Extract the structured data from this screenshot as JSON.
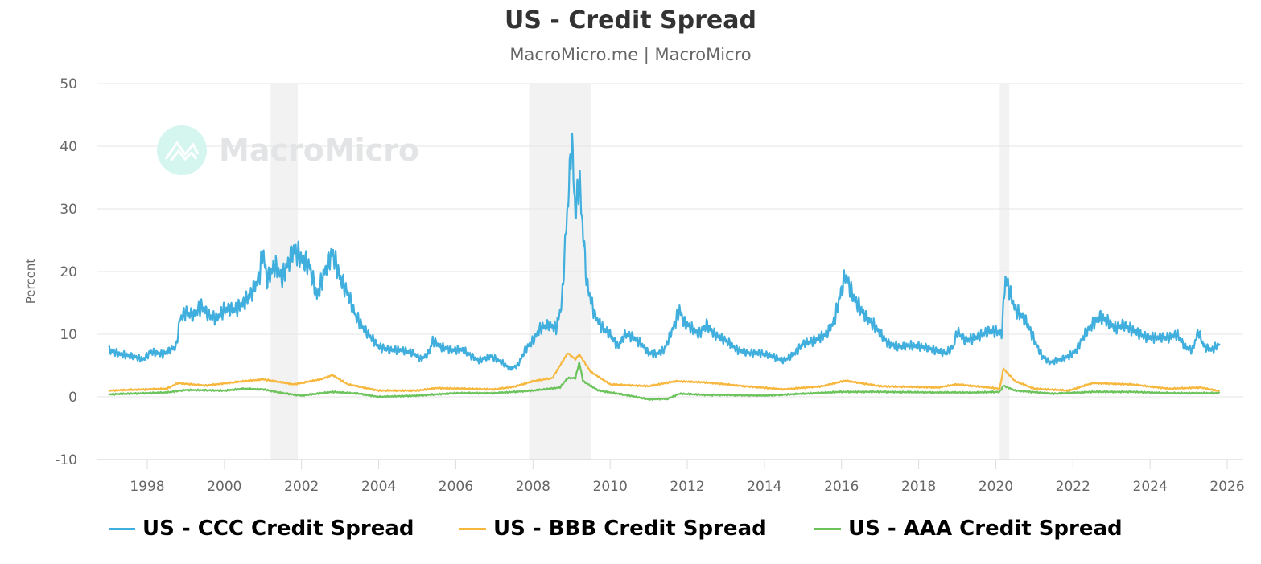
{
  "chart_data": {
    "type": "line",
    "title": "US - Credit Spread",
    "subtitle": "MacroMicro.me | MacroMicro",
    "watermark": "MacroMicro",
    "xlabel": "",
    "ylabel": "Percent",
    "xlim": [
      1997,
      2026.2
    ],
    "ylim": [
      -10,
      50
    ],
    "yticks": [
      50,
      40,
      30,
      20,
      10,
      0,
      -10
    ],
    "xticks": [
      1998,
      2000,
      2002,
      2004,
      2006,
      2008,
      2010,
      2012,
      2014,
      2016,
      2018,
      2020,
      2022,
      2024,
      2026
    ],
    "grid": true,
    "legend_position": "bottom",
    "recession_bands": [
      [
        2001.2,
        2001.9
      ],
      [
        2007.9,
        2009.5
      ],
      [
        2020.1,
        2020.35
      ]
    ],
    "series": [
      {
        "name": "US - CCC Credit Spread",
        "color": "#41afdd",
        "points": [
          [
            1997.0,
            7.5
          ],
          [
            1997.3,
            6.8
          ],
          [
            1997.6,
            6.5
          ],
          [
            1997.9,
            6.0
          ],
          [
            1998.1,
            7.2
          ],
          [
            1998.4,
            6.8
          ],
          [
            1998.6,
            7.5
          ],
          [
            1998.75,
            8
          ],
          [
            1998.85,
            12.5
          ],
          [
            1999.0,
            13.5
          ],
          [
            1999.2,
            13
          ],
          [
            1999.4,
            14.5
          ],
          [
            1999.6,
            13
          ],
          [
            1999.8,
            12.5
          ],
          [
            2000.0,
            14
          ],
          [
            2000.3,
            14
          ],
          [
            2000.5,
            15
          ],
          [
            2000.7,
            16.5
          ],
          [
            2000.9,
            19
          ],
          [
            2001.0,
            23.5
          ],
          [
            2001.1,
            18.5
          ],
          [
            2001.3,
            21
          ],
          [
            2001.5,
            19
          ],
          [
            2001.7,
            22
          ],
          [
            2001.8,
            23.5
          ],
          [
            2002.0,
            22
          ],
          [
            2002.2,
            21
          ],
          [
            2002.4,
            16
          ],
          [
            2002.6,
            20
          ],
          [
            2002.8,
            23
          ],
          [
            2003.0,
            19
          ],
          [
            2003.2,
            16.5
          ],
          [
            2003.4,
            13
          ],
          [
            2003.6,
            11
          ],
          [
            2003.8,
            9.5
          ],
          [
            2004.0,
            8
          ],
          [
            2004.3,
            7.5
          ],
          [
            2004.6,
            7.5
          ],
          [
            2004.9,
            7
          ],
          [
            2005.1,
            6
          ],
          [
            2005.3,
            7
          ],
          [
            2005.4,
            9
          ],
          [
            2005.6,
            8
          ],
          [
            2005.9,
            7.5
          ],
          [
            2006.2,
            7.5
          ],
          [
            2006.4,
            6.5
          ],
          [
            2006.6,
            5.8
          ],
          [
            2006.9,
            6.5
          ],
          [
            2007.2,
            5.5
          ],
          [
            2007.4,
            4.5
          ],
          [
            2007.6,
            5
          ],
          [
            2007.8,
            7.5
          ],
          [
            2008.0,
            9
          ],
          [
            2008.2,
            11
          ],
          [
            2008.4,
            11.5
          ],
          [
            2008.6,
            11
          ],
          [
            2008.75,
            15
          ],
          [
            2008.85,
            26
          ],
          [
            2008.95,
            35
          ],
          [
            2009.0,
            42
          ],
          [
            2009.1,
            29
          ],
          [
            2009.2,
            35
          ],
          [
            2009.3,
            26
          ],
          [
            2009.4,
            18
          ],
          [
            2009.6,
            13
          ],
          [
            2009.8,
            11
          ],
          [
            2010.0,
            10
          ],
          [
            2010.2,
            8
          ],
          [
            2010.4,
            10
          ],
          [
            2010.6,
            9.5
          ],
          [
            2010.8,
            8.5
          ],
          [
            2011.0,
            7
          ],
          [
            2011.2,
            6.8
          ],
          [
            2011.4,
            7.5
          ],
          [
            2011.7,
            12
          ],
          [
            2011.8,
            14
          ],
          [
            2011.9,
            12
          ],
          [
            2012.1,
            11
          ],
          [
            2012.3,
            10
          ],
          [
            2012.5,
            11.5
          ],
          [
            2012.7,
            10
          ],
          [
            2013.0,
            9
          ],
          [
            2013.3,
            7.5
          ],
          [
            2013.6,
            7
          ],
          [
            2013.9,
            7
          ],
          [
            2014.2,
            6.5
          ],
          [
            2014.5,
            5.8
          ],
          [
            2014.8,
            7
          ],
          [
            2015.0,
            8.5
          ],
          [
            2015.3,
            9
          ],
          [
            2015.6,
            10
          ],
          [
            2015.8,
            12
          ],
          [
            2016.0,
            17
          ],
          [
            2016.1,
            19.5
          ],
          [
            2016.3,
            16
          ],
          [
            2016.6,
            13
          ],
          [
            2016.9,
            11
          ],
          [
            2017.2,
            8.5
          ],
          [
            2017.5,
            8
          ],
          [
            2017.8,
            8.2
          ],
          [
            2018.1,
            8
          ],
          [
            2018.4,
            7.5
          ],
          [
            2018.7,
            7
          ],
          [
            2018.9,
            8
          ],
          [
            2019.0,
            10.5
          ],
          [
            2019.2,
            9
          ],
          [
            2019.5,
            9.5
          ],
          [
            2019.8,
            10.5
          ],
          [
            2020.0,
            10.5
          ],
          [
            2020.15,
            10
          ],
          [
            2020.25,
            19
          ],
          [
            2020.35,
            17
          ],
          [
            2020.5,
            14
          ],
          [
            2020.8,
            12
          ],
          [
            2021.0,
            9
          ],
          [
            2021.2,
            6.5
          ],
          [
            2021.4,
            5.5
          ],
          [
            2021.7,
            6
          ],
          [
            2021.9,
            6.5
          ],
          [
            2022.1,
            7.5
          ],
          [
            2022.3,
            10
          ],
          [
            2022.5,
            11.5
          ],
          [
            2022.7,
            12.8
          ],
          [
            2022.9,
            12
          ],
          [
            2023.1,
            11
          ],
          [
            2023.3,
            11.5
          ],
          [
            2023.6,
            10.5
          ],
          [
            2023.9,
            9.5
          ],
          [
            2024.2,
            9.5
          ],
          [
            2024.5,
            9.5
          ],
          [
            2024.7,
            10
          ],
          [
            2024.9,
            8
          ],
          [
            2025.1,
            7.5
          ],
          [
            2025.25,
            10.5
          ],
          [
            2025.4,
            8
          ],
          [
            2025.6,
            7.5
          ],
          [
            2025.8,
            8.5
          ]
        ]
      },
      {
        "name": "US - BBB Credit Spread",
        "color": "#f7b73d",
        "points": [
          [
            1997,
            1.0
          ],
          [
            1998.5,
            1.3
          ],
          [
            1998.8,
            2.2
          ],
          [
            1999.5,
            1.8
          ],
          [
            2000.5,
            2.5
          ],
          [
            2001,
            2.8
          ],
          [
            2001.8,
            2
          ],
          [
            2002.5,
            2.8
          ],
          [
            2002.8,
            3.5
          ],
          [
            2003.2,
            2
          ],
          [
            2004,
            1
          ],
          [
            2005,
            1.0
          ],
          [
            2005.5,
            1.4
          ],
          [
            2007,
            1.2
          ],
          [
            2007.5,
            1.6
          ],
          [
            2008,
            2.5
          ],
          [
            2008.5,
            3
          ],
          [
            2008.9,
            7
          ],
          [
            2009.1,
            6
          ],
          [
            2009.2,
            6.8
          ],
          [
            2009.5,
            4
          ],
          [
            2010,
            2
          ],
          [
            2011,
            1.7
          ],
          [
            2011.7,
            2.5
          ],
          [
            2012.5,
            2.3
          ],
          [
            2013.5,
            1.7
          ],
          [
            2014.5,
            1.2
          ],
          [
            2015.5,
            1.7
          ],
          [
            2016.1,
            2.6
          ],
          [
            2017,
            1.7
          ],
          [
            2018.5,
            1.5
          ],
          [
            2019,
            2
          ],
          [
            2020.1,
            1.3
          ],
          [
            2020.2,
            4.5
          ],
          [
            2020.5,
            2.5
          ],
          [
            2021,
            1.3
          ],
          [
            2021.9,
            1.0
          ],
          [
            2022.5,
            2.2
          ],
          [
            2023.5,
            2
          ],
          [
            2024.5,
            1.3
          ],
          [
            2025.3,
            1.5
          ],
          [
            2025.8,
            0.9
          ]
        ]
      },
      {
        "name": "US - AAA Credit Spread",
        "color": "#6cc35c",
        "points": [
          [
            1997,
            0.4
          ],
          [
            1998.5,
            0.7
          ],
          [
            1999,
            1.1
          ],
          [
            2000,
            1.0
          ],
          [
            2000.5,
            1.3
          ],
          [
            2001,
            1.2
          ],
          [
            2001.5,
            0.6
          ],
          [
            2002,
            0.2
          ],
          [
            2002.8,
            0.8
          ],
          [
            2003.5,
            0.5
          ],
          [
            2004,
            0
          ],
          [
            2005,
            0.2
          ],
          [
            2006,
            0.6
          ],
          [
            2007,
            0.6
          ],
          [
            2008,
            1.0
          ],
          [
            2008.7,
            1.5
          ],
          [
            2008.9,
            3
          ],
          [
            2009.1,
            3
          ],
          [
            2009.2,
            5.5
          ],
          [
            2009.3,
            2.5
          ],
          [
            2009.7,
            1
          ],
          [
            2010.5,
            0.2
          ],
          [
            2011,
            -0.4
          ],
          [
            2011.5,
            -0.3
          ],
          [
            2011.8,
            0.5
          ],
          [
            2012.5,
            0.3
          ],
          [
            2013,
            0.3
          ],
          [
            2014,
            0.2
          ],
          [
            2015,
            0.5
          ],
          [
            2016,
            0.8
          ],
          [
            2017,
            0.8
          ],
          [
            2018.5,
            0.7
          ],
          [
            2019.5,
            0.7
          ],
          [
            2020.1,
            0.8
          ],
          [
            2020.2,
            1.8
          ],
          [
            2020.5,
            1.0
          ],
          [
            2021.5,
            0.5
          ],
          [
            2022.5,
            0.8
          ],
          [
            2023.5,
            0.8
          ],
          [
            2024.5,
            0.6
          ],
          [
            2025.8,
            0.6
          ]
        ]
      }
    ]
  }
}
